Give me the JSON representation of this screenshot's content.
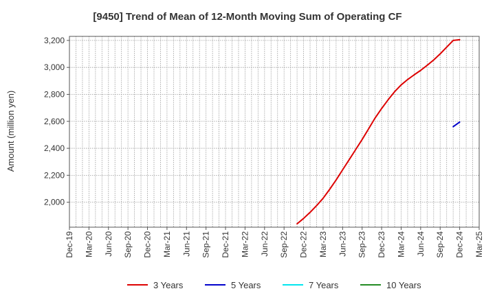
{
  "chart_data": {
    "type": "line",
    "title": "[9450]  Trend of Mean of 12-Month Moving Sum of Operating CF",
    "xlabel": "",
    "ylabel": "Amount (million yen)",
    "x_ticks": [
      "Dec-19",
      "Mar-20",
      "Jun-20",
      "Sep-20",
      "Dec-20",
      "Mar-21",
      "Jun-21",
      "Sep-21",
      "Dec-21",
      "Mar-22",
      "Jun-22",
      "Sep-22",
      "Dec-22",
      "Mar-23",
      "Jun-23",
      "Sep-23",
      "Dec-23",
      "Mar-24",
      "Jun-24",
      "Sep-24",
      "Dec-24",
      "Mar-25"
    ],
    "y_ticks": [
      2000,
      2200,
      2400,
      2600,
      2800,
      3000,
      3200
    ],
    "y_tick_labels": [
      "2,000",
      "2,200",
      "2,400",
      "2,600",
      "2,800",
      "3,000",
      "3,200"
    ],
    "ylim": [
      1815,
      3230
    ],
    "grid": true,
    "legend_position": "bottom",
    "series": [
      {
        "name": "3 Years",
        "color": "#dd0000",
        "x": [
          "Nov-22",
          "Dec-22",
          "Jan-23",
          "Feb-23",
          "Mar-23",
          "Apr-23",
          "May-23",
          "Jun-23",
          "Jul-23",
          "Aug-23",
          "Sep-23",
          "Oct-23",
          "Nov-23",
          "Dec-23",
          "Jan-24",
          "Feb-24",
          "Mar-24",
          "Apr-24",
          "May-24",
          "Jun-24",
          "Jul-24",
          "Aug-24",
          "Sep-24",
          "Oct-24",
          "Nov-24",
          "Dec-24"
        ],
        "values": [
          1840,
          1880,
          1925,
          1975,
          2030,
          2095,
          2165,
          2240,
          2315,
          2390,
          2465,
          2545,
          2625,
          2695,
          2760,
          2820,
          2870,
          2910,
          2945,
          2978,
          3015,
          3055,
          3100,
          3150,
          3200,
          3205
        ]
      },
      {
        "name": "5 Years",
        "color": "#0000cc",
        "x": [
          "Nov-24",
          "Dec-24"
        ],
        "values": [
          2560,
          2595
        ]
      },
      {
        "name": "7 Years",
        "color": "#00e5ee",
        "x": [],
        "values": []
      },
      {
        "name": "10 Years",
        "color": "#228b22",
        "x": [],
        "values": []
      }
    ]
  }
}
